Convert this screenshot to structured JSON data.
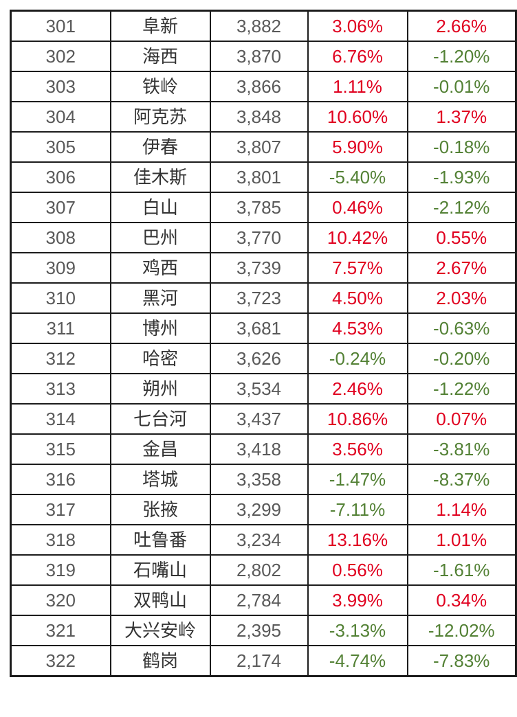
{
  "colors": {
    "positive": "#e0001f",
    "negative": "#538135",
    "rank_text": "#595959",
    "value_text": "#595959",
    "city_text": "#333333",
    "border": "#1c1c1c",
    "background": "#ffffff"
  },
  "chart_data": {
    "type": "table",
    "columns": [
      "rank",
      "city",
      "value",
      "pct_change_1",
      "pct_change_2"
    ],
    "header_visible": false,
    "color_rule": "positive percentages red, negative percentages green",
    "rows": [
      [
        "301",
        "阜新",
        "3,882",
        "3.06%",
        "2.66%"
      ],
      [
        "302",
        "海西",
        "3,870",
        "6.76%",
        "-1.20%"
      ],
      [
        "303",
        "铁岭",
        "3,866",
        "1.11%",
        "-0.01%"
      ],
      [
        "304",
        "阿克苏",
        "3,848",
        "10.60%",
        "1.37%"
      ],
      [
        "305",
        "伊春",
        "3,807",
        "5.90%",
        "-0.18%"
      ],
      [
        "306",
        "佳木斯",
        "3,801",
        "-5.40%",
        "-1.93%"
      ],
      [
        "307",
        "白山",
        "3,785",
        "0.46%",
        "-2.12%"
      ],
      [
        "308",
        "巴州",
        "3,770",
        "10.42%",
        "0.55%"
      ],
      [
        "309",
        "鸡西",
        "3,739",
        "7.57%",
        "2.67%"
      ],
      [
        "310",
        "黑河",
        "3,723",
        "4.50%",
        "2.03%"
      ],
      [
        "311",
        "博州",
        "3,681",
        "4.53%",
        "-0.63%"
      ],
      [
        "312",
        "哈密",
        "3,626",
        "-0.24%",
        "-0.20%"
      ],
      [
        "313",
        "朔州",
        "3,534",
        "2.46%",
        "-1.22%"
      ],
      [
        "314",
        "七台河",
        "3,437",
        "10.86%",
        "0.07%"
      ],
      [
        "315",
        "金昌",
        "3,418",
        "3.56%",
        "-3.81%"
      ],
      [
        "316",
        "塔城",
        "3,358",
        "-1.47%",
        "-8.37%"
      ],
      [
        "317",
        "张掖",
        "3,299",
        "-7.11%",
        "1.14%"
      ],
      [
        "318",
        "吐鲁番",
        "3,234",
        "13.16%",
        "1.01%"
      ],
      [
        "319",
        "石嘴山",
        "2,802",
        "0.56%",
        "-1.61%"
      ],
      [
        "320",
        "双鸭山",
        "2,784",
        "3.99%",
        "0.34%"
      ],
      [
        "321",
        "大兴安岭",
        "2,395",
        "-3.13%",
        "-12.02%"
      ],
      [
        "322",
        "鹤岗",
        "2,174",
        "-4.74%",
        "-7.83%"
      ]
    ]
  }
}
